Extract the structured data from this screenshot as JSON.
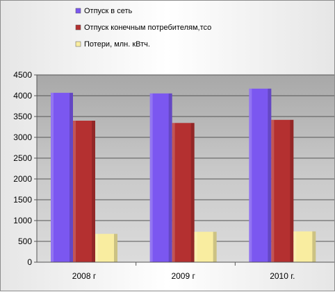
{
  "chart_data": {
    "type": "bar",
    "categories": [
      "2008 г",
      "2009 г",
      "2010 г."
    ],
    "series": [
      {
        "name": "Отпуск в сеть",
        "color": "#7b57f0",
        "values": [
          4070,
          4055,
          4170
        ]
      },
      {
        "name": "Отпуск конечным потребителям,тсо",
        "color": "#b43030",
        "values": [
          3400,
          3345,
          3420
        ]
      },
      {
        "name": "Потери, млн. кВтч.",
        "color": "#f9eda0",
        "values": [
          680,
          730,
          740
        ]
      }
    ],
    "ylim": [
      0,
      4500
    ],
    "yticks": [
      "0",
      "500",
      "1000",
      "1500",
      "2000",
      "2500",
      "3000",
      "3500",
      "4000",
      "4500"
    ],
    "grid": true,
    "legend_position": "top-center",
    "plot_background": "#c4c4c4"
  }
}
